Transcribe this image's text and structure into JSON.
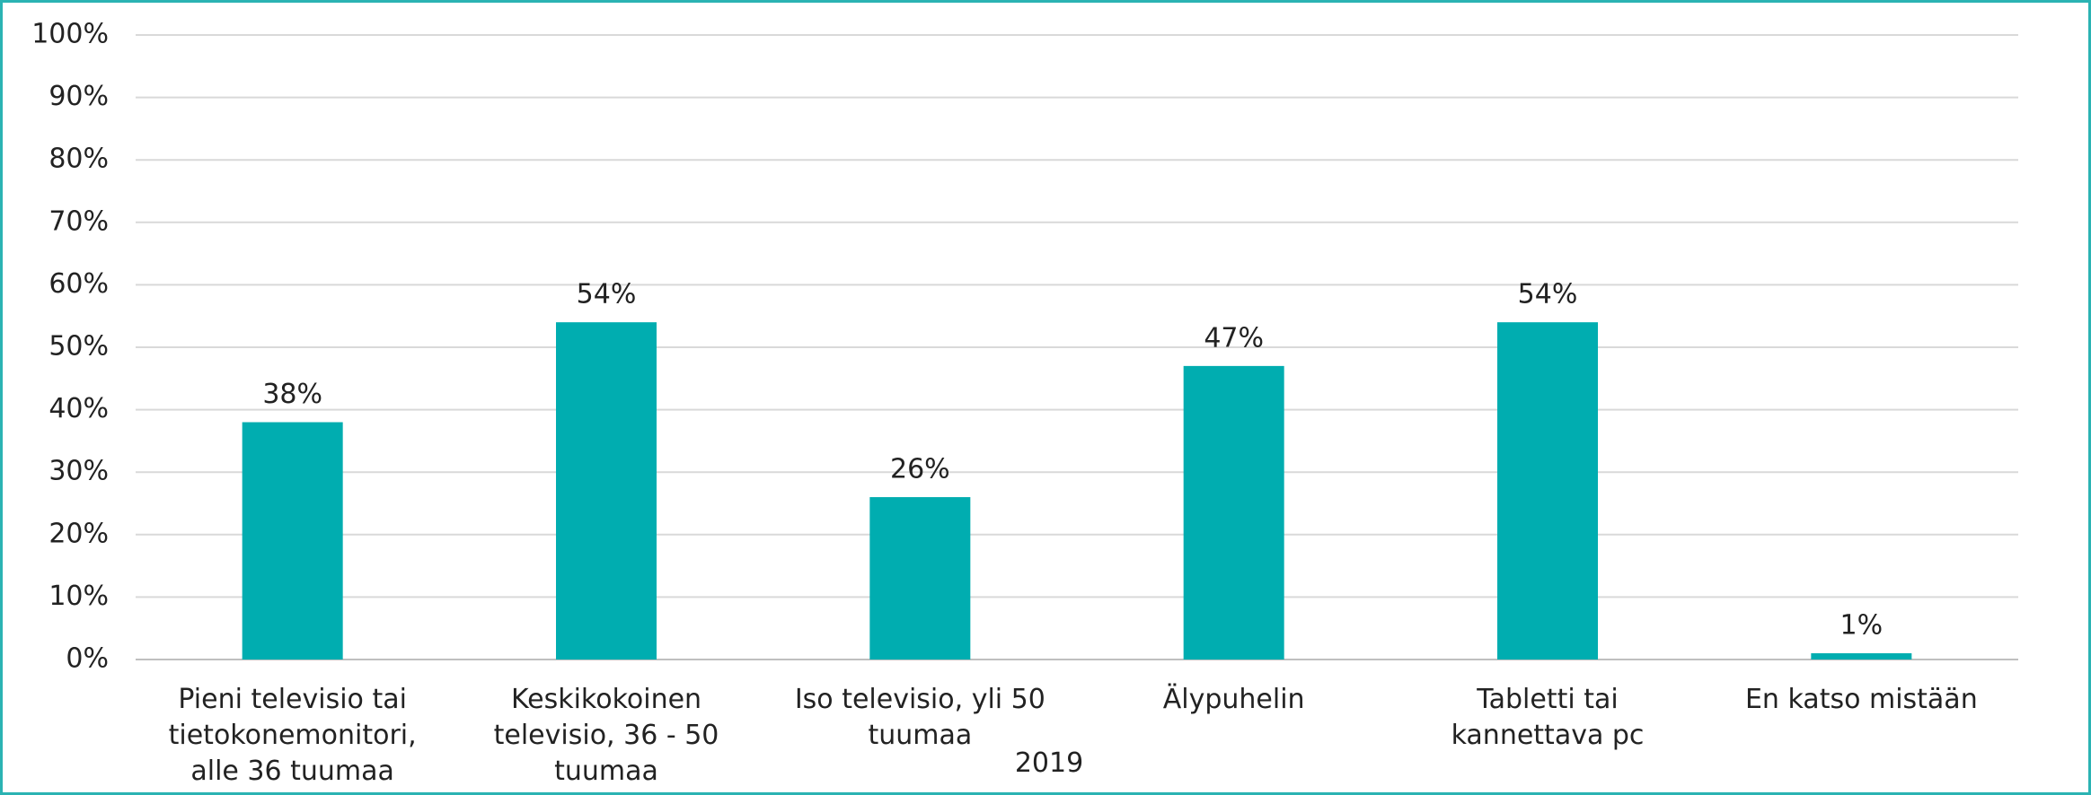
{
  "chart_data": {
    "type": "bar",
    "x_label": "2019",
    "categories": [
      "Pieni televisio tai tietokonemonitori, alle 36 tuumaa",
      "Keskikokoinen televisio, 36 - 50 tuumaa",
      "Iso televisio, yli 50 tuumaa",
      "Älypuhelin",
      "Tabletti tai kannettava pc",
      "En katso mistään"
    ],
    "values": [
      38,
      54,
      26,
      47,
      54,
      1
    ],
    "value_labels": [
      "38%",
      "54%",
      "26%",
      "47%",
      "54%",
      "1%"
    ],
    "color": "#00adb0",
    "ylim": [
      0,
      100
    ],
    "yticks": [
      {
        "value": 0,
        "label": "0%"
      },
      {
        "value": 10,
        "label": "10%"
      },
      {
        "value": 20,
        "label": "20%"
      },
      {
        "value": 30,
        "label": "30%"
      },
      {
        "value": 40,
        "label": "40%"
      },
      {
        "value": 50,
        "label": "50%"
      },
      {
        "value": 60,
        "label": "60%"
      },
      {
        "value": 70,
        "label": "70%"
      },
      {
        "value": 80,
        "label": "80%"
      },
      {
        "value": 90,
        "label": "90%"
      },
      {
        "value": 100,
        "label": "100%"
      }
    ],
    "grid": true
  }
}
